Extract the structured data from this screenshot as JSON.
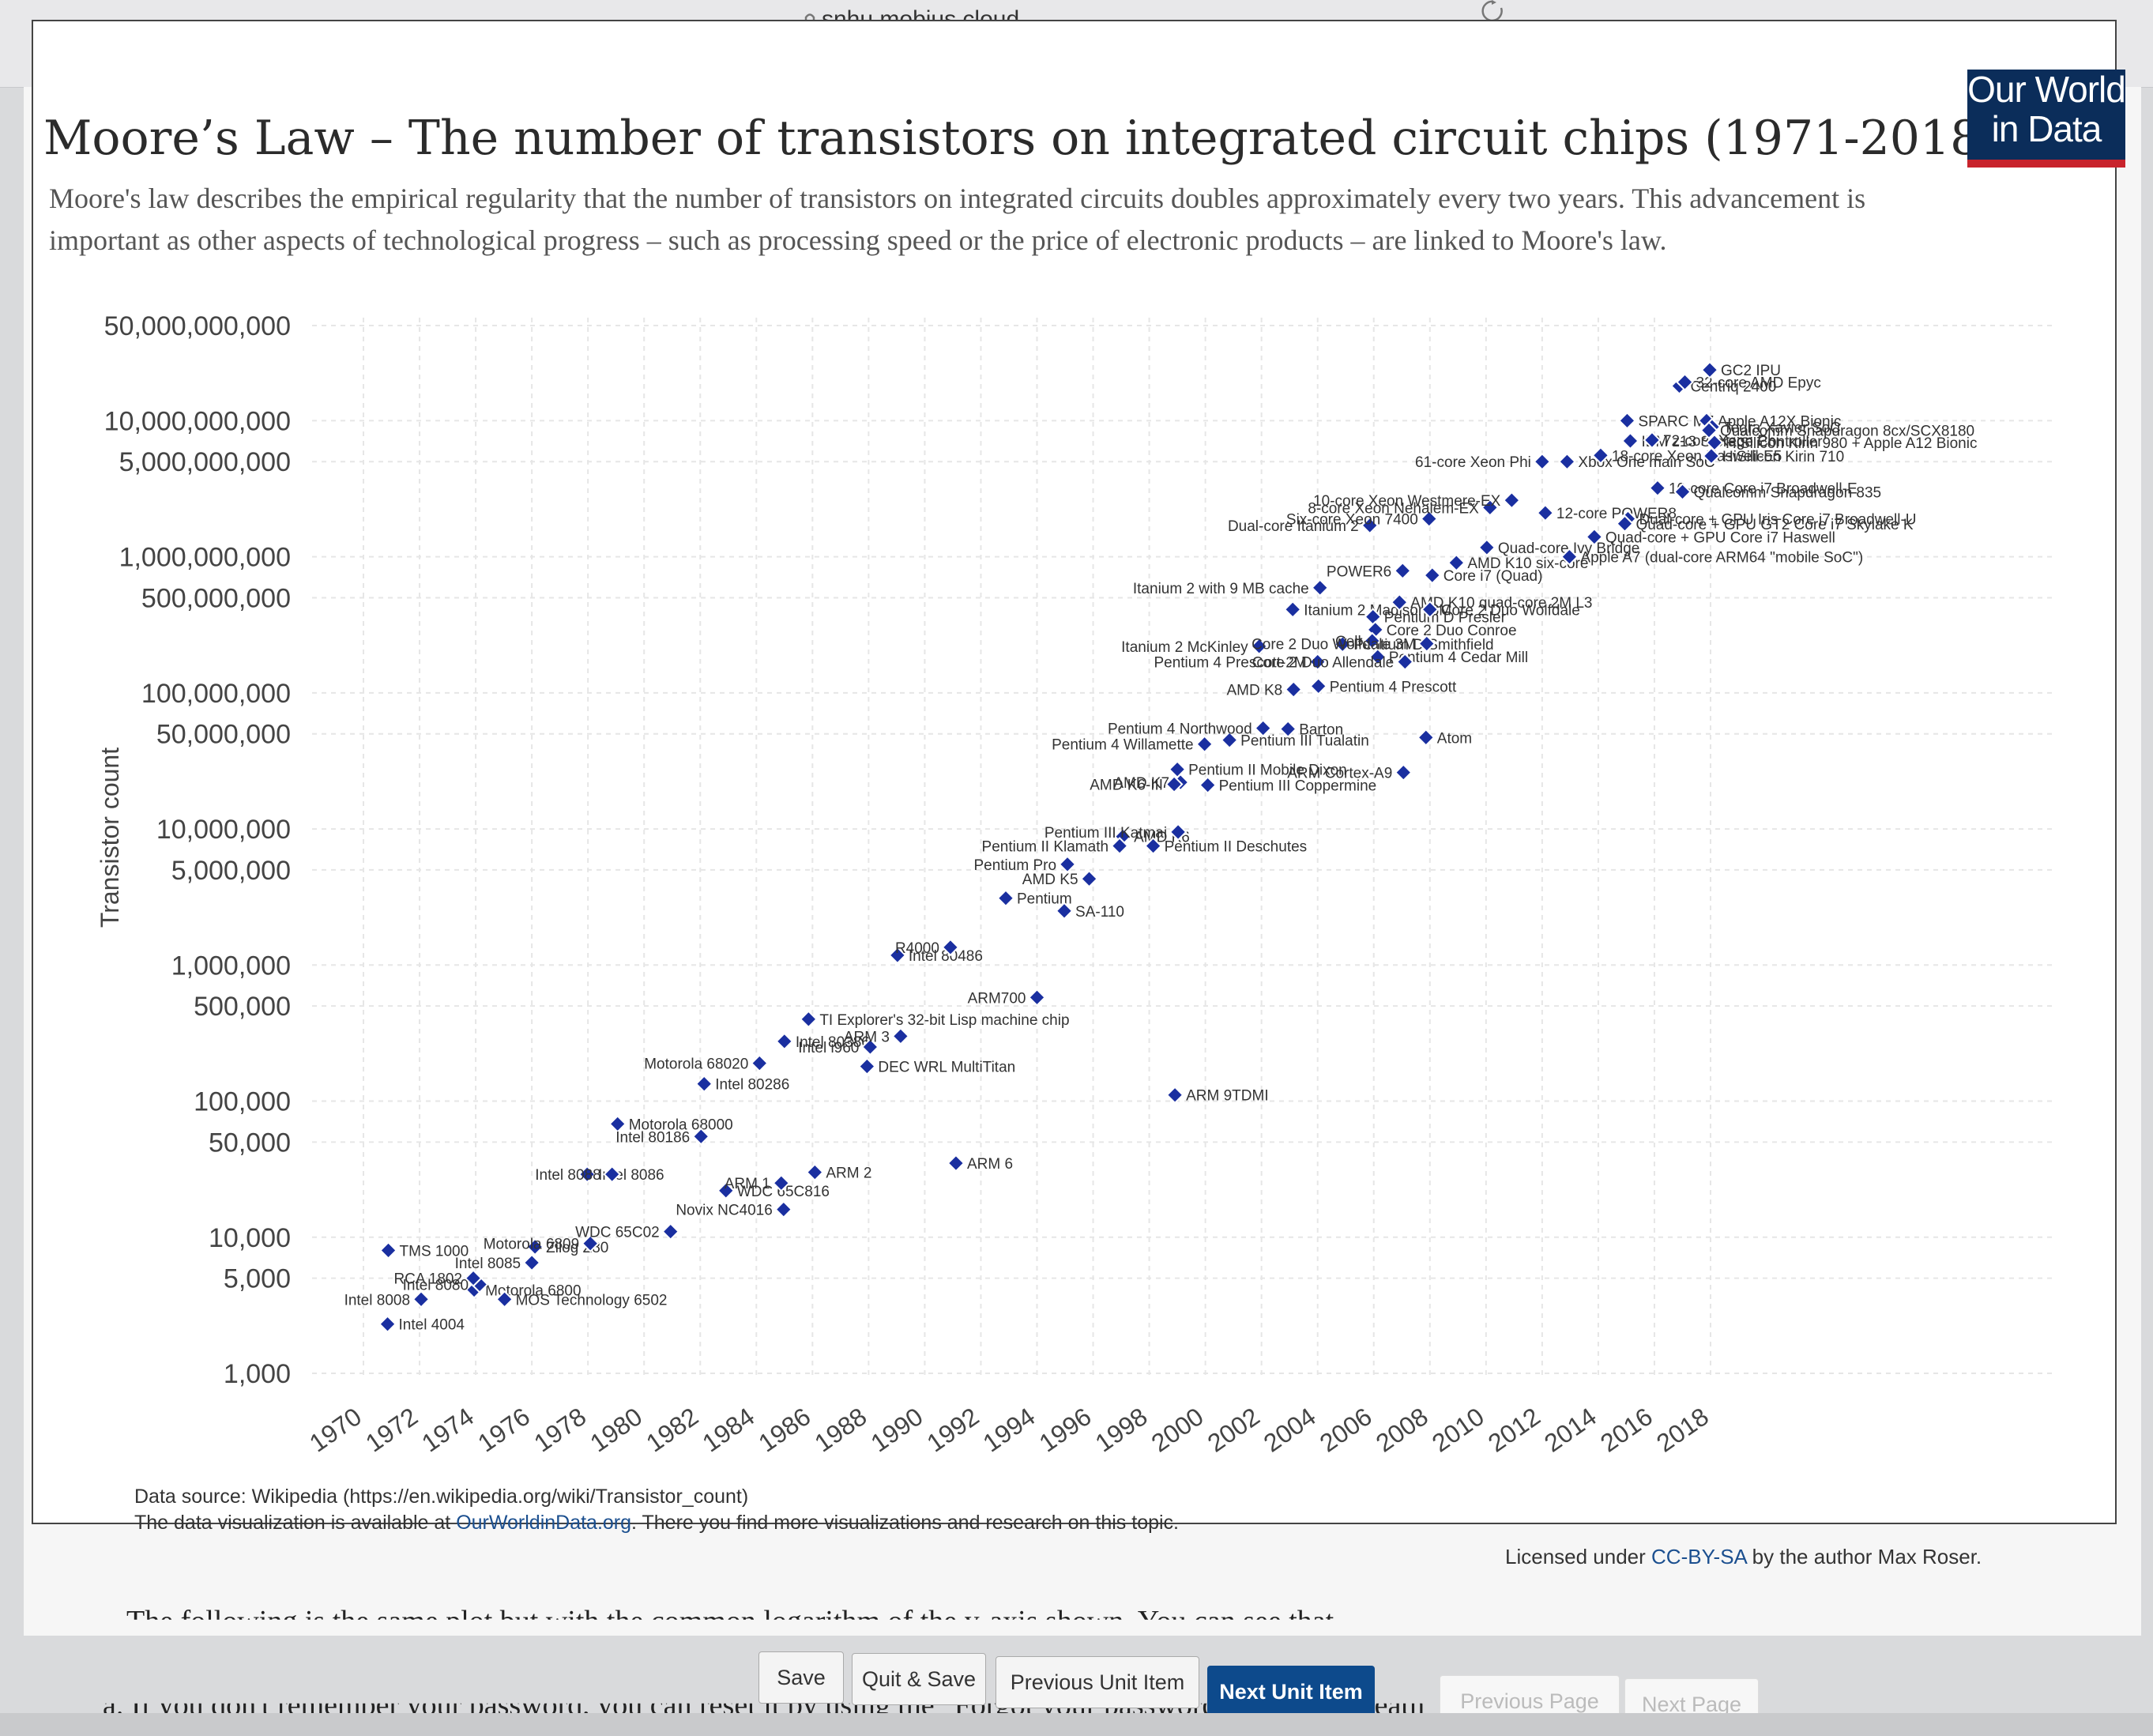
{
  "browser": {
    "url": "snhu.mobius.cloud",
    "icons": [
      "shield-icon",
      "reader-icon",
      "lock-icon",
      "reload-icon"
    ]
  },
  "figure": {
    "title": "Moore’s Law – The number of transistors on integrated circuit chips (1971-2018)",
    "subtitle": "Moore's law describes the empirical regularity that the number of transistors on integrated circuits doubles approximately every two years. This advancement is important as other aspects of technological progress – such as processing speed or the price of electronic products – are linked to Moore's law.",
    "logo": [
      "Our World",
      "in Data"
    ],
    "source_line1": "Data source: Wikipedia (https://en.wikipedia.org/wiki/Transistor_count)",
    "source_line2_pre": "The data visualization is available at ",
    "source_line2_link": "OurWorldinData.org",
    "source_line2_post": ". There you find more visualizations and research on this topic.",
    "license_pre": "Licensed under ",
    "license_link": "CC-BY-SA",
    "license_post": " by the author Max Roser."
  },
  "chart_data": {
    "type": "scatter",
    "ylabel": "Transistor count",
    "xlabel": "",
    "y_scale": "log",
    "xlim": [
      1970,
      2018.5
    ],
    "ylim": [
      1000,
      50000000000
    ],
    "x_ticks": [
      1970,
      1972,
      1974,
      1976,
      1978,
      1980,
      1982,
      1984,
      1986,
      1988,
      1990,
      1992,
      1994,
      1996,
      1998,
      2000,
      2002,
      2004,
      2006,
      2008,
      2010,
      2012,
      2014,
      2016,
      2018
    ],
    "y_ticks": [
      {
        "v": 50000000000,
        "label": "50,000,000,000"
      },
      {
        "v": 10000000000,
        "label": "10,000,000,000"
      },
      {
        "v": 5000000000,
        "label": "5,000,000,000"
      },
      {
        "v": 1000000000,
        "label": "1,000,000,000"
      },
      {
        "v": 500000000,
        "label": "500,000,000"
      },
      {
        "v": 100000000,
        "label": "100,000,000"
      },
      {
        "v": 50000000,
        "label": "50,000,000"
      },
      {
        "v": 10000000,
        "label": "10,000,000"
      },
      {
        "v": 5000000,
        "label": "5,000,000"
      },
      {
        "v": 1000000,
        "label": "1,000,000"
      },
      {
        "v": 500000,
        "label": "500,000"
      },
      {
        "v": 100000,
        "label": "100,000"
      },
      {
        "v": 50000,
        "label": "50,000"
      },
      {
        "v": 10000,
        "label": "10,000"
      },
      {
        "v": 5000,
        "label": "5,000"
      },
      {
        "v": 1000,
        "label": "1,000"
      }
    ],
    "marker_color": "#1a2fa0",
    "points": [
      {
        "x": 1971,
        "y": 2300,
        "label": "Intel 4004"
      },
      {
        "x": 1972,
        "y": 3500,
        "label": "Intel 8008"
      },
      {
        "x": 1974,
        "y": 4100,
        "label": "Motorola 6800"
      },
      {
        "x": 1974,
        "y": 4500,
        "label": "Intel 8080"
      },
      {
        "x": 1975,
        "y": 3500,
        "label": "MOS Technology 6502"
      },
      {
        "x": 1974,
        "y": 5000,
        "label": "RCA 1802"
      },
      {
        "x": 1976,
        "y": 8500,
        "label": "Zilog Z80"
      },
      {
        "x": 1976,
        "y": 6500,
        "label": "Intel 8085"
      },
      {
        "x": 1971,
        "y": 8000,
        "label": "TMS 1000"
      },
      {
        "x": 1978,
        "y": 9000,
        "label": "Motorola 6809"
      },
      {
        "x": 1978,
        "y": 29000,
        "label": "Intel 8086"
      },
      {
        "x": 1979,
        "y": 29000,
        "label": "Intel 8088"
      },
      {
        "x": 1979,
        "y": 68000,
        "label": "Motorola 68000"
      },
      {
        "x": 1981,
        "y": 11000,
        "label": "WDC 65C02"
      },
      {
        "x": 1982,
        "y": 134000,
        "label": "Intel 80286"
      },
      {
        "x": 1982,
        "y": 55000,
        "label": "Intel 80186"
      },
      {
        "x": 1983,
        "y": 22000,
        "label": "WDC 65C816"
      },
      {
        "x": 1984,
        "y": 190000,
        "label": "Motorola 68020"
      },
      {
        "x": 1985,
        "y": 275000,
        "label": "Intel 80386"
      },
      {
        "x": 1985,
        "y": 25000,
        "label": "ARM 1"
      },
      {
        "x": 1986,
        "y": 30000,
        "label": "ARM 2"
      },
      {
        "x": 1985,
        "y": 16000,
        "label": "Novix NC4016"
      },
      {
        "x": 1986,
        "y": 400000,
        "label": "TI Explorer's 32-bit Lisp machine chip"
      },
      {
        "x": 1988,
        "y": 250000,
        "label": "Intel i960"
      },
      {
        "x": 1988,
        "y": 180000,
        "label": "DEC WRL MultiTitan"
      },
      {
        "x": 1989,
        "y": 300000,
        "label": "ARM 3"
      },
      {
        "x": 1989,
        "y": 1180000,
        "label": "Intel 80486"
      },
      {
        "x": 1991,
        "y": 1350000,
        "label": "R4000"
      },
      {
        "x": 1991,
        "y": 35000,
        "label": "ARM 6"
      },
      {
        "x": 1994,
        "y": 578000,
        "label": "ARM700"
      },
      {
        "x": 1993,
        "y": 3100000,
        "label": "Pentium"
      },
      {
        "x": 1995,
        "y": 5500000,
        "label": "Pentium Pro"
      },
      {
        "x": 1995,
        "y": 2500000,
        "label": "SA-110"
      },
      {
        "x": 1996,
        "y": 4300000,
        "label": "AMD K5"
      },
      {
        "x": 1997,
        "y": 8800000,
        "label": "AMD K6"
      },
      {
        "x": 1997,
        "y": 7500000,
        "label": "Pentium II Klamath"
      },
      {
        "x": 1998,
        "y": 7500000,
        "label": "Pentium II Deschutes"
      },
      {
        "x": 1999,
        "y": 9500000,
        "label": "Pentium III Katmai"
      },
      {
        "x": 1999,
        "y": 111000,
        "label": "ARM 9TDMI"
      },
      {
        "x": 1999,
        "y": 22000000,
        "label": "AMD K7"
      },
      {
        "x": 1999,
        "y": 27400000,
        "label": "Pentium II Mobile Dixon"
      },
      {
        "x": 1999,
        "y": 21300000,
        "label": "AMD K6-III"
      },
      {
        "x": 2000,
        "y": 21000000,
        "label": "Pentium III Coppermine"
      },
      {
        "x": 2000,
        "y": 42000000,
        "label": "Pentium 4 Willamette"
      },
      {
        "x": 2001,
        "y": 45000000,
        "label": "Pentium III Tualatin"
      },
      {
        "x": 2002,
        "y": 55000000,
        "label": "Pentium 4 Northwood"
      },
      {
        "x": 2003,
        "y": 54300000,
        "label": "Barton"
      },
      {
        "x": 2003,
        "y": 105900000,
        "label": "AMD K8"
      },
      {
        "x": 2004,
        "y": 112000000,
        "label": "Pentium 4 Prescott"
      },
      {
        "x": 2002,
        "y": 220000000,
        "label": "Itanium 2 McKinley"
      },
      {
        "x": 2003,
        "y": 410000000,
        "label": "Itanium 2 Madison 6M"
      },
      {
        "x": 2004,
        "y": 169000000,
        "label": "Pentium 4 Prescott-2M"
      },
      {
        "x": 2005,
        "y": 228000000,
        "label": "Pentium D Smithfield"
      },
      {
        "x": 2004,
        "y": 592000000,
        "label": "Itanium 2 with 9 MB cache"
      },
      {
        "x": 2006,
        "y": 362000000,
        "label": "Pentium D Presler"
      },
      {
        "x": 2006,
        "y": 1700000000,
        "label": "Dual-core Itanium 2"
      },
      {
        "x": 2006,
        "y": 291000000,
        "label": "Core 2 Duo Conroe"
      },
      {
        "x": 2006,
        "y": 241000000,
        "label": "Cell"
      },
      {
        "x": 2006,
        "y": 184000000,
        "label": "Pentium 4 Cedar Mill"
      },
      {
        "x": 2007,
        "y": 789000000,
        "label": "POWER6"
      },
      {
        "x": 2007,
        "y": 463000000,
        "label": "AMD K10 quad-core 2M L3"
      },
      {
        "x": 2007,
        "y": 169000000,
        "label": "Core 2 Duo Allendale"
      },
      {
        "x": 2008,
        "y": 410000000,
        "label": "Core 2 Duo Wolfdale"
      },
      {
        "x": 2008,
        "y": 230000000,
        "label": "Core 2 Duo Wolfdale 3M"
      },
      {
        "x": 2008,
        "y": 731000000,
        "label": "Core i7 (Quad)"
      },
      {
        "x": 2008,
        "y": 1900000000,
        "label": "Six-core Xeon 7400"
      },
      {
        "x": 2008,
        "y": 47000000,
        "label": "Atom"
      },
      {
        "x": 2007,
        "y": 26000000,
        "label": "ARM Cortex-A9"
      },
      {
        "x": 2009,
        "y": 904000000,
        "label": "AMD K10 six-core"
      },
      {
        "x": 2010,
        "y": 2300000000,
        "label": "8-core Xeon Nehalem-EX"
      },
      {
        "x": 2010,
        "y": 1170000000,
        "label": "Quad-core Ivy Bridge"
      },
      {
        "x": 2011,
        "y": 2600000000,
        "label": "10-core Xeon Westmere-EX"
      },
      {
        "x": 2012,
        "y": 2100000000,
        "label": "12-core POWER8"
      },
      {
        "x": 2012,
        "y": 5000000000,
        "label": "61-core Xeon Phi"
      },
      {
        "x": 2013,
        "y": 5000000000,
        "label": "Xbox One main SoC"
      },
      {
        "x": 2014,
        "y": 5560000000,
        "label": "18-core Xeon Haswell-E5"
      },
      {
        "x": 2013,
        "y": 1000000000,
        "label": "Apple A7 (dual-core ARM64 \"mobile SoC\")"
      },
      {
        "x": 2014,
        "y": 1400000000,
        "label": "Quad-core + GPU Core i7 Haswell"
      },
      {
        "x": 2015,
        "y": 1900000000,
        "label": "Dual-core + GPU Iris Core i7 Broadwell-U"
      },
      {
        "x": 2015,
        "y": 1750000000,
        "label": "Quad-core + GPU GT2 Core i7 Skylake K"
      },
      {
        "x": 2015,
        "y": 7100000000,
        "label": "IBM z13 Storage Controller"
      },
      {
        "x": 2015,
        "y": 10000000000,
        "label": "SPARC M7"
      },
      {
        "x": 2016,
        "y": 7200000000,
        "label": "72-core Xeon Phi"
      },
      {
        "x": 2016,
        "y": 3200000000,
        "label": "10-core Core i7 Broadwell-E"
      },
      {
        "x": 2017,
        "y": 3000000000,
        "label": "Qualcomm Snapdragon 835"
      },
      {
        "x": 2017,
        "y": 18000000000,
        "label": "Centriq 2400"
      },
      {
        "x": 2017,
        "y": 19200000000,
        "label": "32-core AMD Epyc"
      },
      {
        "x": 2018,
        "y": 23600000000,
        "label": "GC2 IPU"
      },
      {
        "x": 2018,
        "y": 10000000000,
        "label": "Apple A12X Bionic"
      },
      {
        "x": 2018,
        "y": 9000000000,
        "label": "Tegra Xavier SoC"
      },
      {
        "x": 2018,
        "y": 8500000000,
        "label": "Qualcomm Snapdragon 8cx/SCX8180"
      },
      {
        "x": 2018,
        "y": 6900000000,
        "label": "HiSilicon Kirin 980 + Apple A12 Bionic"
      },
      {
        "x": 2018,
        "y": 5500000000,
        "label": "HiSilicon Kirin 710"
      }
    ]
  },
  "nav": {
    "save": "Save",
    "quit_save": "Quit & Save",
    "prev_unit": "Previous Unit Item",
    "next_unit": "Next Unit Item",
    "prev_page": "Previous Page",
    "next_page": "Next Page"
  },
  "footer": {
    "line1": "The following is the same plot but with the common logarithm of the y-axis shown. You can see that",
    "line2": "a.   If you don't remember your password, you can reset it by using the \"Forgot your password\" link underneath"
  }
}
